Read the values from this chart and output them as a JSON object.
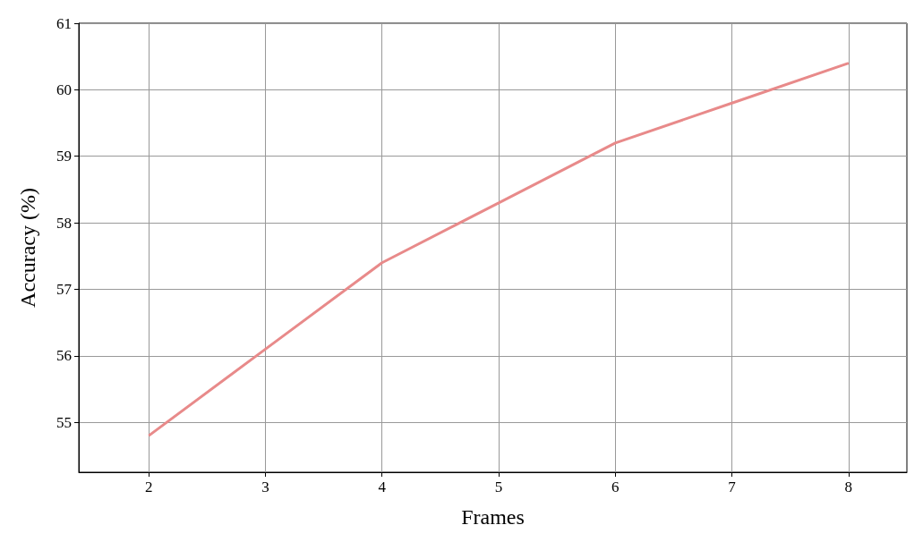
{
  "chart_data": {
    "type": "line",
    "xlabel": "Frames",
    "ylabel": "Accuracy (%)",
    "x": [
      2,
      3,
      4,
      5,
      6,
      7,
      8
    ],
    "series": [
      {
        "color": "#e88a8a",
        "values": [
          54.8,
          56.1,
          57.4,
          58.3,
          59.2,
          59.8,
          60.4
        ]
      }
    ],
    "xlim": [
      1.4,
      8.5
    ],
    "xticks": [
      2,
      3,
      4,
      5,
      6,
      7,
      8
    ],
    "ylim": [
      54.25,
      61
    ],
    "yticks": [
      55,
      56,
      57,
      58,
      59,
      60,
      61
    ],
    "grid": true,
    "marker": "none",
    "line_style": "solid"
  }
}
